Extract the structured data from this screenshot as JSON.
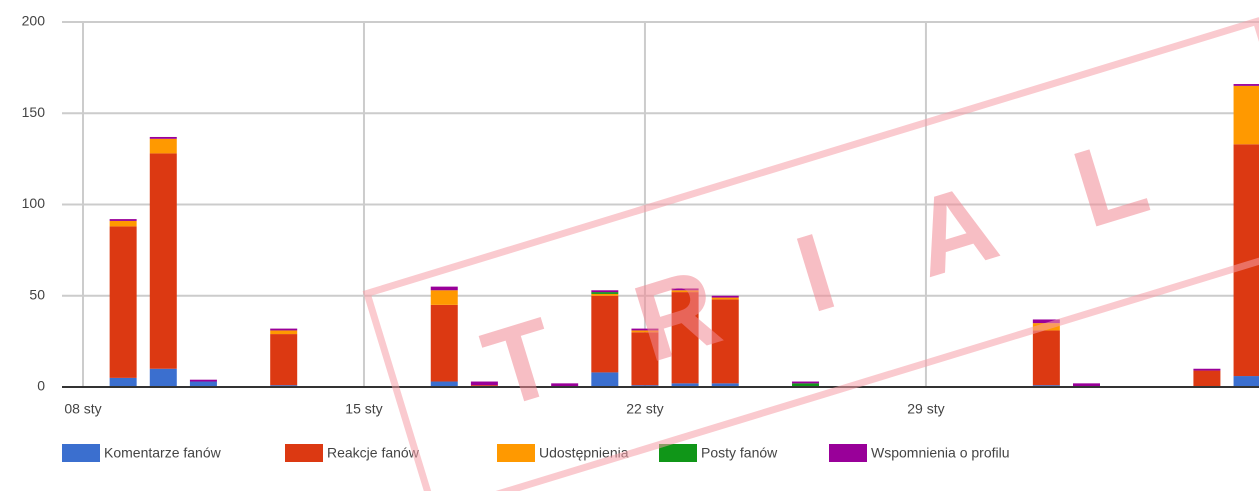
{
  "chart_data": {
    "type": "stacked_bar",
    "categories": [
      "08 sty",
      null,
      null,
      null,
      null,
      null,
      null,
      "15 sty",
      null,
      null,
      null,
      null,
      null,
      null,
      "22 sty",
      null,
      null,
      null,
      null,
      null,
      null,
      "29 sty",
      null,
      null,
      null,
      null,
      null,
      null,
      null,
      null
    ],
    "series": [
      {
        "name": "Komentarze fanów",
        "color": "#3b6fcf",
        "values": [
          0,
          5,
          10,
          3,
          0,
          1,
          0,
          0,
          0,
          3,
          0,
          0,
          0,
          8,
          1,
          2,
          2,
          0,
          0,
          0,
          0,
          0,
          0,
          0,
          1,
          0,
          0,
          0,
          0,
          6
        ]
      },
      {
        "name": "Reakcje fanów",
        "color": "#dc3912",
        "values": [
          0,
          83,
          118,
          0,
          0,
          28,
          0,
          0,
          0,
          42,
          1,
          0,
          0,
          42,
          29,
          50,
          46,
          0,
          0,
          0,
          0,
          0,
          0,
          0,
          30,
          0,
          0,
          0,
          9,
          127
        ]
      },
      {
        "name": "Udostępnienia",
        "color": "#ff9900",
        "values": [
          0,
          3,
          8,
          0,
          0,
          2,
          0,
          0,
          0,
          8,
          0,
          0,
          0,
          1,
          1,
          1,
          1,
          0,
          0,
          0,
          0,
          0,
          0,
          0,
          4,
          0,
          0,
          0,
          0,
          32
        ]
      },
      {
        "name": "Posty fanów",
        "color": "#109618",
        "values": [
          0,
          0,
          0,
          0,
          0,
          0,
          0,
          0,
          0,
          0,
          0,
          0,
          0,
          1,
          0,
          0,
          0,
          0,
          2,
          0,
          0,
          0,
          0,
          0,
          0,
          0,
          0,
          0,
          0,
          0
        ]
      },
      {
        "name": "Wspomnienia o profilu",
        "color": "#990099",
        "values": [
          0,
          1,
          1,
          1,
          0,
          1,
          0,
          0,
          0,
          2,
          2,
          0,
          2,
          1,
          1,
          1,
          1,
          0,
          1,
          0,
          0,
          0,
          0,
          0,
          2,
          2,
          0,
          0,
          1,
          1
        ]
      }
    ],
    "ylim": [
      0,
      200
    ],
    "yticks": [
      0,
      50,
      100,
      150,
      200
    ],
    "grid": true,
    "legend": "bottom",
    "watermark": "TRIAL"
  }
}
